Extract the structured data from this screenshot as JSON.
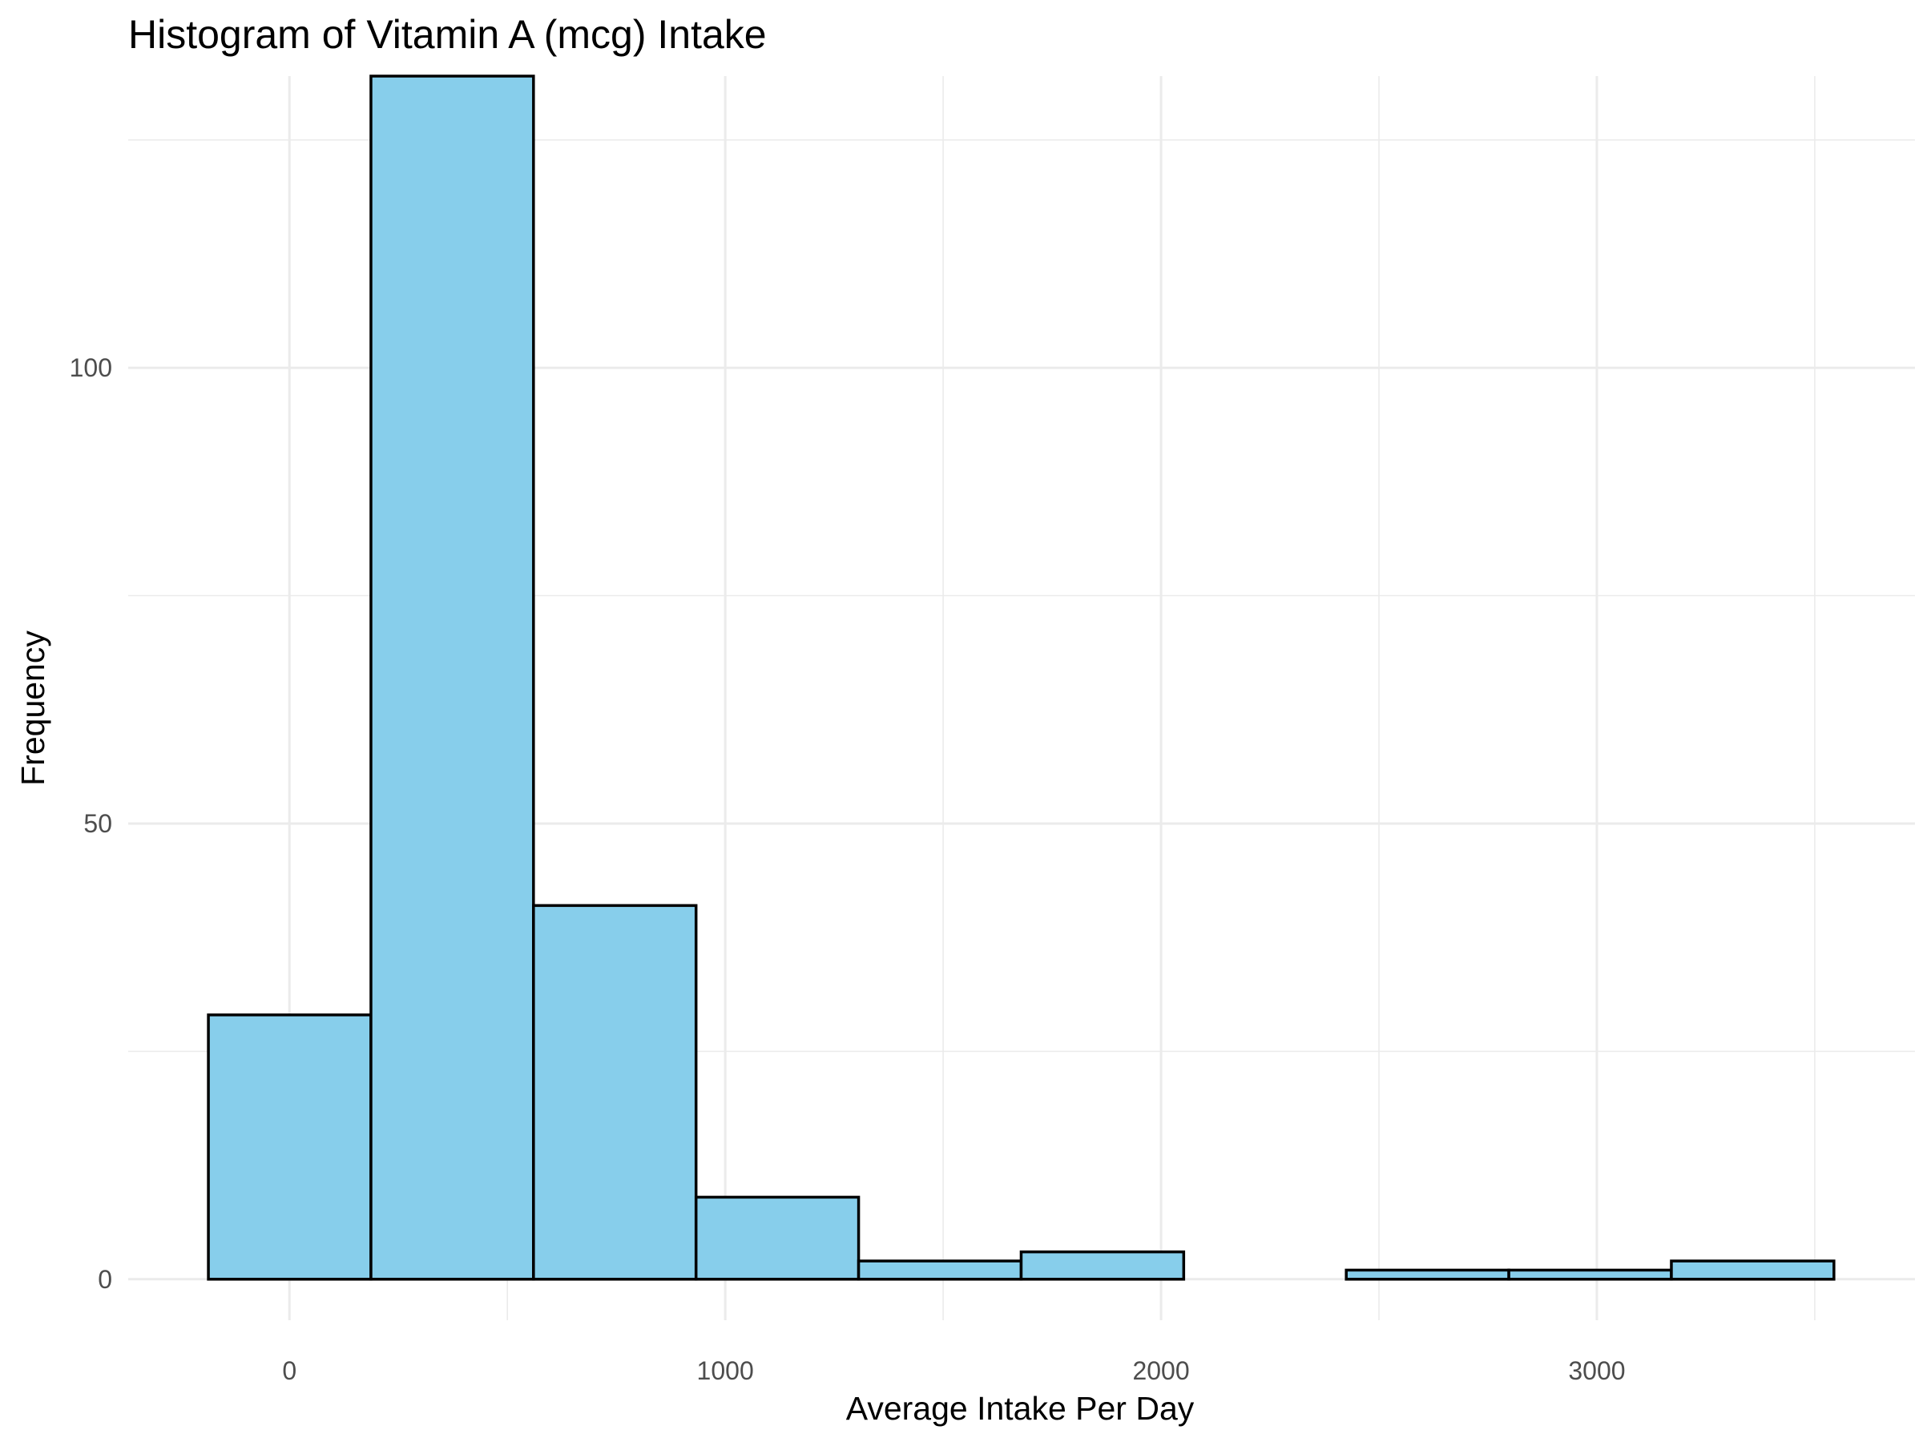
{
  "chart_data": {
    "type": "bar",
    "subtype": "histogram",
    "title": "Histogram of Vitamin A (mcg) Intake",
    "xlabel": "Average Intake Per Day",
    "ylabel": "Frequency",
    "xlim": [
      -370,
      3730
    ],
    "ylim": [
      -4.5,
      132
    ],
    "x_ticks": [
      0,
      1000,
      2000,
      3000
    ],
    "x_tick_labels": [
      "0",
      "1000",
      "2000",
      "3000"
    ],
    "y_ticks": [
      0,
      50,
      100
    ],
    "y_tick_labels": [
      "0",
      "50",
      "100"
    ],
    "bin_width": 373,
    "bins": [
      {
        "start": -186,
        "end": 187,
        "count": 29
      },
      {
        "start": 187,
        "end": 560,
        "count": 132
      },
      {
        "start": 560,
        "end": 933,
        "count": 41
      },
      {
        "start": 933,
        "end": 1306,
        "count": 9
      },
      {
        "start": 1306,
        "end": 1679,
        "count": 2
      },
      {
        "start": 1679,
        "end": 2052,
        "count": 3
      },
      {
        "start": 2052,
        "end": 2425,
        "count": 0
      },
      {
        "start": 2425,
        "end": 2798,
        "count": 1
      },
      {
        "start": 2798,
        "end": 3171,
        "count": 1
      },
      {
        "start": 3171,
        "end": 3544,
        "count": 2
      }
    ],
    "fill_color": "#87ceeb",
    "outline_color": "#000000",
    "grid": true,
    "legend": "none"
  }
}
